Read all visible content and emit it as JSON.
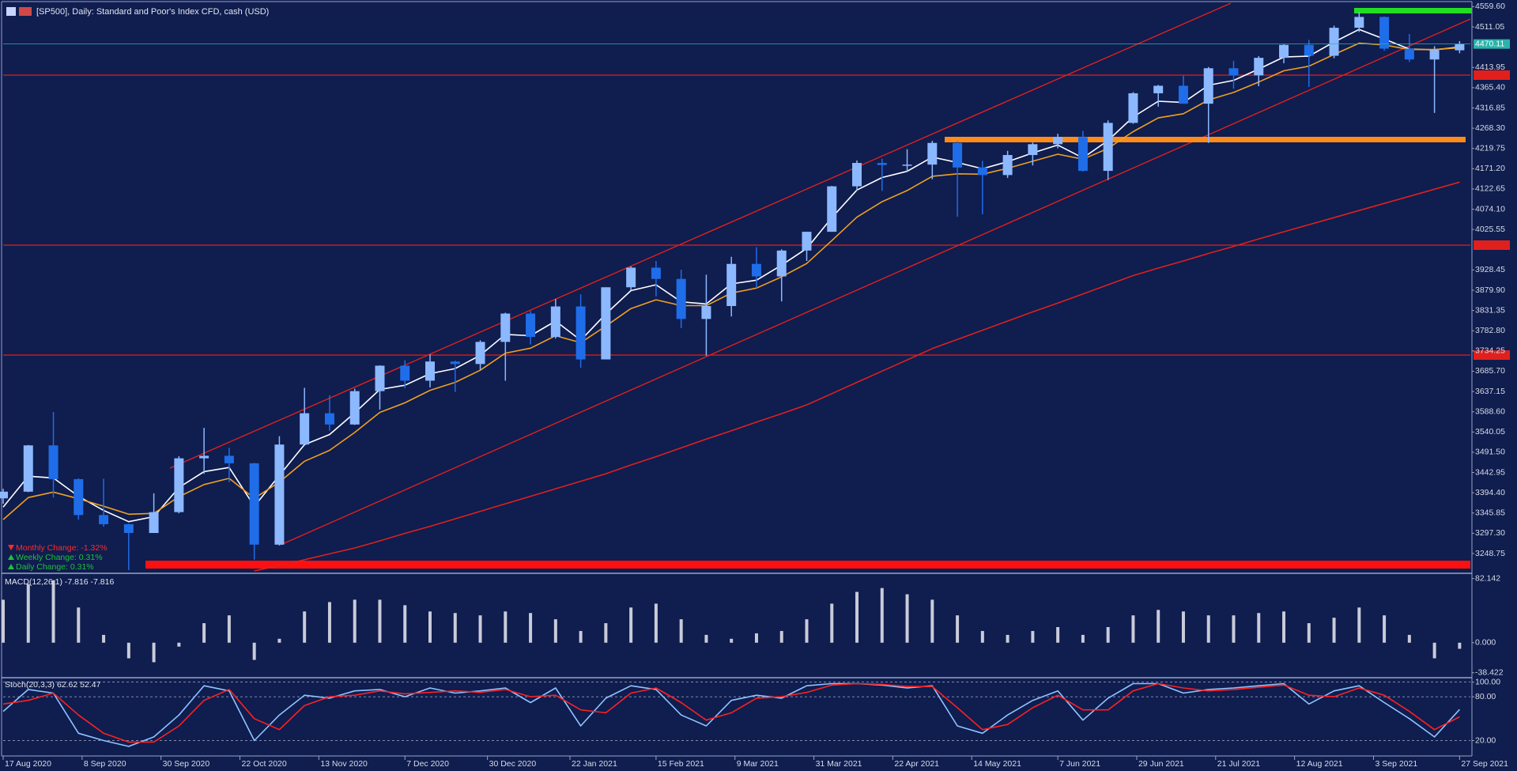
{
  "chart_data": {
    "type": "candlestick",
    "title": "[SP500], Daily:  Standard and Poor's Index CFD, cash (USD)",
    "x": [
      "2020-08-17",
      "2020-08-24",
      "2020-08-31",
      "2020-09-07",
      "2020-09-14",
      "2020-09-21",
      "2020-09-28",
      "2020-10-05",
      "2020-10-12",
      "2020-10-19",
      "2020-10-26",
      "2020-11-02",
      "2020-11-09",
      "2020-11-16",
      "2020-11-23",
      "2020-11-30",
      "2020-12-07",
      "2020-12-14",
      "2020-12-21",
      "2020-12-28",
      "2021-01-04",
      "2021-01-11",
      "2021-01-18",
      "2021-01-25",
      "2021-02-01",
      "2021-02-08",
      "2021-02-15",
      "2021-02-22",
      "2021-03-01",
      "2021-03-08",
      "2021-03-15",
      "2021-03-22",
      "2021-03-29",
      "2021-04-05",
      "2021-04-12",
      "2021-04-19",
      "2021-04-26",
      "2021-05-03",
      "2021-05-10",
      "2021-05-17",
      "2021-05-24",
      "2021-05-31",
      "2021-06-07",
      "2021-06-14",
      "2021-06-21",
      "2021-06-28",
      "2021-07-05",
      "2021-07-12",
      "2021-07-19",
      "2021-07-26",
      "2021-08-02",
      "2021-08-09",
      "2021-08-16",
      "2021-08-23",
      "2021-08-30",
      "2021-09-06",
      "2021-09-13",
      "2021-09-20",
      "2021-09-27"
    ],
    "open": [
      3381,
      3397,
      3508,
      3427,
      3341,
      3319,
      3298,
      3348,
      3477,
      3483,
      3465,
      3270,
      3510,
      3585,
      3558,
      3638,
      3699,
      3663,
      3709,
      3703,
      3756,
      3824,
      3768,
      3841,
      3714,
      3887,
      3934,
      3907,
      3811,
      3842,
      3943,
      3913,
      3975,
      4020,
      4129,
      4185,
      4180,
      4181,
      4233,
      4174,
      4156,
      4204,
      4230,
      4247,
      4166,
      4281,
      4352,
      4370,
      4327,
      4412,
      4395,
      4437,
      4468,
      4442,
      4509,
      4535,
      4459,
      4433,
      4455
    ],
    "high": [
      3404,
      3509,
      3588,
      3429,
      3428,
      3320,
      3393,
      3482,
      3550,
      3502,
      3466,
      3530,
      3646,
      3628,
      3644,
      3700,
      3712,
      3726,
      3711,
      3760,
      3826,
      3830,
      3859,
      3870,
      3887,
      3937,
      3950,
      3929,
      3917,
      3960,
      3983,
      3978,
      4020,
      4130,
      4191,
      4195,
      4218,
      4238,
      4237,
      4190,
      4214,
      4234,
      4255,
      4262,
      4287,
      4355,
      4372,
      4394,
      4415,
      4430,
      4441,
      4470,
      4480,
      4514,
      4546,
      4536,
      4494,
      4465,
      4477
    ],
    "low": [
      3368,
      3396,
      3383,
      3330,
      3313,
      3209,
      3298,
      3345,
      3440,
      3420,
      3234,
      3268,
      3511,
      3543,
      3557,
      3594,
      3645,
      3647,
      3636,
      3688,
      3663,
      3750,
      3764,
      3694,
      3725,
      3880,
      3865,
      3789,
      3723,
      3817,
      3885,
      3853,
      3950,
      4020,
      4118,
      4118,
      4165,
      4146,
      4056,
      4062,
      4149,
      4179,
      4220,
      4164,
      4144,
      4279,
      4320,
      4327,
      4233,
      4363,
      4369,
      4424,
      4367,
      4436,
      4499,
      4454,
      4427,
      4305,
      4448
    ],
    "close": [
      3397,
      3508,
      3427,
      3341,
      3319,
      3298,
      3348,
      3477,
      3483,
      3465,
      3270,
      3510,
      3585,
      3558,
      3638,
      3699,
      3663,
      3709,
      3703,
      3756,
      3824,
      3768,
      3841,
      3714,
      3887,
      3934,
      3907,
      3811,
      3842,
      3943,
      3913,
      3975,
      4020,
      4129,
      4185,
      4180,
      4181,
      4233,
      4174,
      4156,
      4204,
      4230,
      4247,
      4166,
      4281,
      4352,
      4370,
      4327,
      4412,
      4395,
      4437,
      4468,
      4442,
      4509,
      4535,
      4459,
      4433,
      4455,
      4470.11
    ],
    "up_color": "#8cb8ff",
    "down_color": "#1f6de8",
    "series": [
      {
        "color": "#ffffff",
        "values": [
          3360,
          3434,
          3430,
          3386,
          3352,
          3325,
          3337,
          3407,
          3445,
          3455,
          3362,
          3436,
          3510,
          3534,
          3586,
          3642,
          3652,
          3680,
          3692,
          3724,
          3774,
          3771,
          3806,
          3760,
          3823,
          3879,
          3893,
          3852,
          3847,
          3895,
          3904,
          3940,
          3980,
          4054,
          4120,
          4150,
          4165,
          4199,
          4186,
          4171,
          4188,
          4209,
          4228,
          4197,
          4239,
          4295,
          4333,
          4330,
          4371,
          4383,
          4410,
          4439,
          4441,
          4475,
          4505,
          4482,
          4458,
          4456,
          4463
        ]
      },
      {
        "color": "#f0a020",
        "values": [
          3330,
          3383,
          3396,
          3380,
          3362,
          3343,
          3345,
          3385,
          3414,
          3429,
          3381,
          3420,
          3470,
          3496,
          3539,
          3587,
          3610,
          3640,
          3659,
          3688,
          3729,
          3741,
          3771,
          3754,
          3794,
          3836,
          3857,
          3843,
          3843,
          3873,
          3885,
          3912,
          3944,
          3999,
          4055,
          4092,
          4119,
          4153,
          4159,
          4158,
          4172,
          4189,
          4206,
          4194,
          4220,
          4260,
          4293,
          4303,
          4336,
          4354,
          4379,
          4406,
          4417,
          4445,
          4472,
          4468,
          4457,
          4457,
          4461
        ]
      },
      {
        "color": "#e0201c",
        "values": [
          null,
          null,
          null,
          null,
          null,
          null,
          null,
          null,
          null,
          null,
          3207,
          3220,
          3234,
          3248,
          3262,
          3279,
          3297,
          3314,
          3332,
          3350,
          3368,
          3386,
          3404,
          3422,
          3440,
          3461,
          3481,
          3502,
          3523,
          3543,
          3564,
          3584,
          3605,
          3632,
          3659,
          3686,
          3713,
          3740,
          3762,
          3784,
          3806,
          3828,
          3849,
          3871,
          3893,
          3915,
          3933,
          3950,
          3968,
          3985,
          4003,
          4020,
          4037,
          4054,
          4071,
          4088,
          4105,
          4122,
          4139
        ]
      }
    ],
    "xlim": [
      "2020-08-17",
      "2021-09-30"
    ],
    "xticks": [
      {
        "value": "2020-08-17",
        "label": "17 Aug 2020"
      },
      {
        "value": "2020-09-08",
        "label": "8 Sep 2020"
      },
      {
        "value": "2020-09-30",
        "label": "30 Sep 2020"
      },
      {
        "value": "2020-10-22",
        "label": "22 Oct 2020"
      },
      {
        "value": "2020-11-13",
        "label": "13 Nov 2020"
      },
      {
        "value": "2020-12-07",
        "label": "7 Dec 2020"
      },
      {
        "value": "2020-12-30",
        "label": "30 Dec 2020"
      },
      {
        "value": "2021-01-22",
        "label": "22 Jan 2021"
      },
      {
        "value": "2021-02-15",
        "label": "15 Feb 2021"
      },
      {
        "value": "2021-03-09",
        "label": "9 Mar 2021"
      },
      {
        "value": "2021-03-31",
        "label": "31 Mar 2021"
      },
      {
        "value": "2021-04-22",
        "label": "22 Apr 2021"
      },
      {
        "value": "2021-05-14",
        "label": "14 May 2021"
      },
      {
        "value": "2021-06-07",
        "label": "7 Jun 2021"
      },
      {
        "value": "2021-06-29",
        "label": "29 Jun 2021"
      },
      {
        "value": "2021-07-21",
        "label": "21 Jul 2021"
      },
      {
        "value": "2021-08-12",
        "label": "12 Aug 2021"
      },
      {
        "value": "2021-09-03",
        "label": "3 Sep 2021"
      },
      {
        "value": "2021-09-27",
        "label": "27 Sep 2021"
      }
    ],
    "ylim": [
      3207,
      4568
    ],
    "yticks": [
      {
        "value": 4559.6,
        "label": "4559.60"
      },
      4511.05,
      4413.95,
      {
        "value": 4365.4,
        "label": "4365.40"
      },
      4316.85,
      {
        "value": 4268.3,
        "label": "4268.30"
      },
      4219.75,
      {
        "value": 4171.2,
        "label": "4171.20"
      },
      4122.65,
      {
        "value": 4074.1,
        "label": "4074.10"
      },
      4025.55,
      3928.45,
      {
        "value": 3879.9,
        "label": "3879.90"
      },
      3831.35,
      {
        "value": 3782.8,
        "label": "3782.80"
      },
      3734.25,
      {
        "value": 3685.7,
        "label": "3685.70"
      },
      3637.15,
      {
        "value": 3588.6,
        "label": "3588.60"
      },
      3540.05,
      {
        "value": 3491.5,
        "label": "3491.50"
      },
      3442.95,
      {
        "value": 3394.4,
        "label": "3394.40"
      },
      3345.85,
      {
        "value": 3297.3,
        "label": "3297.30"
      },
      3248.75
    ],
    "last_price": 4470.11,
    "last_price_color": "#2bb3a8",
    "annotations": [
      {
        "text": "Monthly Change: -1.32%",
        "color": "#ff2a2a",
        "direction": "down"
      },
      {
        "text": "Weekly Change: 0.31%",
        "color": "#22c03a",
        "direction": "up"
      },
      {
        "text": " Daily Change: 0.31%",
        "color": "#22c03a",
        "direction": "up"
      }
    ],
    "panels": [
      {
        "type": "bar",
        "title": "MACD(12,26,1) -7.816 -7.816",
        "color": "#c9cbd8",
        "values": [
          55,
          75,
          80,
          45,
          10,
          -20,
          -25,
          -5,
          25,
          35,
          -22,
          5,
          40,
          52,
          55,
          55,
          48,
          40,
          38,
          35,
          40,
          38,
          30,
          15,
          25,
          45,
          50,
          30,
          10,
          5,
          12,
          15,
          30,
          50,
          65,
          70,
          62,
          55,
          35,
          15,
          10,
          15,
          20,
          10,
          20,
          35,
          42,
          40,
          35,
          35,
          38,
          40,
          25,
          32,
          45,
          35,
          10,
          -20,
          -7.816
        ],
        "ylim": [
          -45.8,
          85.8
        ],
        "yticks": [
          82.142,
          {
            "value": 0,
            "label": "0.000"
          },
          -38.422
        ]
      },
      {
        "type": "line",
        "title": "Stoch(20,3,3) 62.62 52.47",
        "series": [
          {
            "color": "#8fc3ff",
            "values": [
              60,
              90,
              85,
              30,
              20,
              12,
              25,
              55,
              95,
              88,
              20,
              55,
              82,
              78,
              88,
              90,
              80,
              92,
              85,
              88,
              92,
              72,
              92,
              40,
              78,
              95,
              90,
              55,
              40,
              75,
              82,
              78,
              95,
              98,
              98,
              96,
              92,
              95,
              40,
              30,
              55,
              75,
              88,
              48,
              78,
              98,
              98,
              85,
              90,
              92,
              95,
              98,
              70,
              88,
              95,
              72,
              50,
              25,
              62.62
            ]
          },
          {
            "color": "#ff2020",
            "values": [
              70,
              75,
              85,
              55,
              30,
              18,
              18,
              40,
              75,
              90,
              50,
              35,
              68,
              80,
              82,
              88,
              84,
              86,
              88,
              86,
              90,
              80,
              82,
              62,
              58,
              85,
              92,
              72,
              48,
              58,
              78,
              80,
              86,
              96,
              98,
              97,
              94,
              94,
              65,
              35,
              42,
              65,
              82,
              62,
              62,
              88,
              98,
              92,
              88,
              90,
              93,
              96,
              82,
              80,
              92,
              82,
              60,
              35,
              52.47
            ]
          }
        ],
        "ylim": [
          0,
          105
        ],
        "yticks": [
          {
            "value": 100,
            "label": "100.00"
          },
          {
            "value": 80,
            "label": "80.00"
          },
          {
            "value": 20,
            "label": "20.00"
          }
        ],
        "grid": true
      }
    ]
  }
}
